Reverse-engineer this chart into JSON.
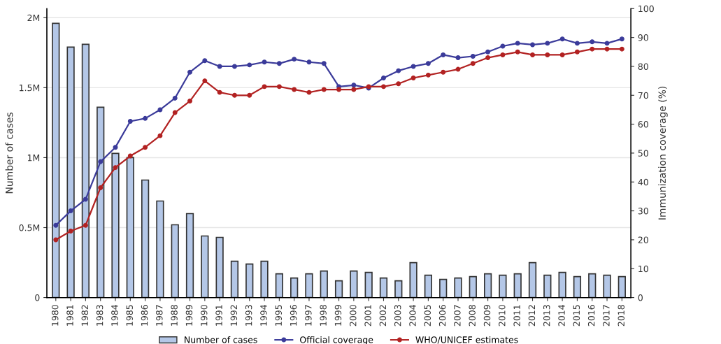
{
  "chart_data": {
    "type": "bar",
    "ylabel": "Number of cases",
    "y2label": "Immunization coverage (%)",
    "categories": [
      "1980",
      "1981",
      "1982",
      "1983",
      "1984",
      "1985",
      "1986",
      "1987",
      "1988",
      "1989",
      "1990",
      "1991",
      "1992",
      "1993",
      "1994",
      "1995",
      "1996",
      "1997",
      "1998",
      "1999",
      "2000",
      "2001",
      "2002",
      "2003",
      "2004",
      "2005",
      "2006",
      "2007",
      "2008",
      "2009",
      "2010",
      "2011",
      "2012",
      "2013",
      "2014",
      "2015",
      "2016",
      "2017",
      "2018"
    ],
    "series": [
      {
        "name": "Number of cases",
        "color": "#b4c7e7",
        "values": [
          1960000,
          1790000,
          1810000,
          1360000,
          1030000,
          1000000,
          840000,
          690000,
          520000,
          600000,
          440000,
          430000,
          260000,
          240000,
          260000,
          170000,
          140000,
          170000,
          190000,
          120000,
          190000,
          180000,
          140000,
          120000,
          250000,
          160000,
          130000,
          140000,
          150000,
          170000,
          160000,
          170000,
          250000,
          160000,
          180000,
          150000,
          170000,
          160000,
          150000
        ]
      },
      {
        "name": "Official coverage",
        "type": "line",
        "axis": "y2",
        "color": "#3b3b9a",
        "values": [
          25,
          30,
          34,
          47,
          52,
          61,
          62,
          65,
          69,
          78,
          82,
          80,
          80,
          80.5,
          81.5,
          81,
          82.5,
          81.5,
          81,
          73,
          73.5,
          72.5,
          76,
          78.5,
          80,
          81,
          84,
          83,
          83.5,
          85,
          87,
          88,
          87.5,
          88,
          89.5,
          88,
          88.5,
          88,
          89.5
        ]
      },
      {
        "name": "WHO/UNICEF estimates",
        "type": "line",
        "axis": "y2",
        "color": "#b22222",
        "values": [
          20,
          23,
          25,
          38,
          45,
          49,
          52,
          56,
          64,
          68,
          75,
          71,
          70,
          70,
          73,
          73,
          72,
          71,
          72,
          72,
          72,
          73,
          73,
          74,
          76,
          77,
          78,
          79,
          81,
          83,
          84,
          85,
          84,
          84,
          84,
          85,
          86,
          86,
          86
        ]
      }
    ],
    "ylim": [
      0,
      2065000
    ],
    "yticks": [
      0,
      {
        "value": 500000,
        "label": "0.5M"
      },
      {
        "value": 1000000,
        "label": "1M"
      },
      {
        "value": 1500000,
        "label": "1.5M"
      },
      {
        "value": 2000000,
        "label": "2M"
      }
    ],
    "y2lim": [
      0,
      100
    ],
    "y2ticks": [
      0,
      10,
      20,
      30,
      40,
      50,
      60,
      70,
      80,
      90,
      100
    ],
    "grid": "y",
    "legend": "bottom",
    "marker": "circle",
    "line_style": "solid"
  }
}
